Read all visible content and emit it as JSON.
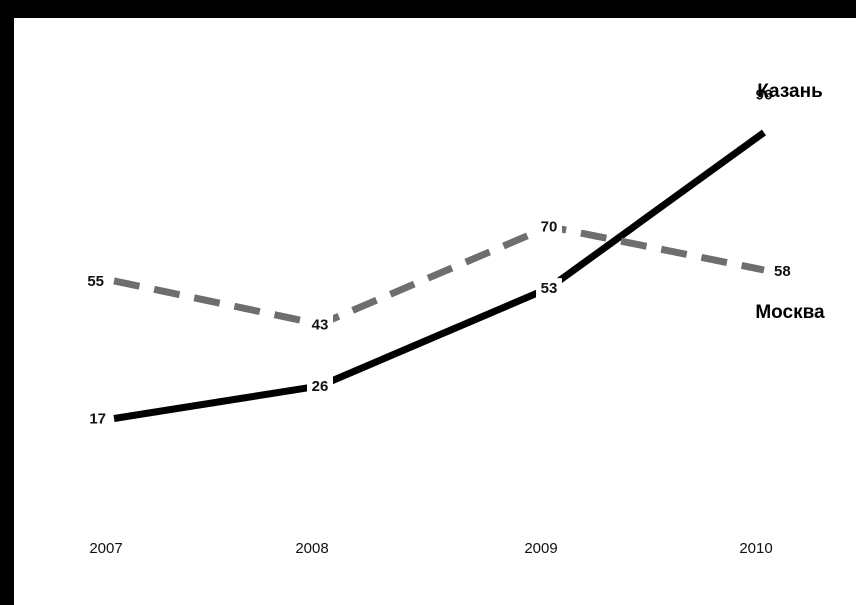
{
  "chart_data": {
    "type": "line",
    "title": "",
    "xlabel": "",
    "ylabel": "",
    "categories": [
      "2007",
      "2008",
      "2009",
      "2010"
    ],
    "ylim": [
      0,
      100
    ],
    "grid": false,
    "legend": "direct labels at line ends",
    "series": [
      {
        "name": "Казань",
        "values": [
          17,
          26,
          53,
          96
        ],
        "color": "#000000",
        "line_style": "solid"
      },
      {
        "name": "Москва",
        "values": [
          55,
          43,
          70,
          58
        ],
        "color": "#6e6e6e",
        "line_style": "dashed"
      }
    ]
  },
  "colors": {
    "background": "#ffffff",
    "border": "#000000"
  }
}
